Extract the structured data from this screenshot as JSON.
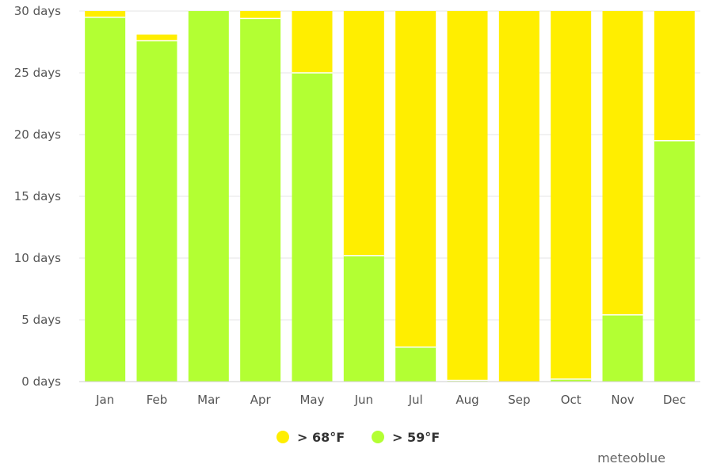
{
  "chart_data": {
    "type": "bar",
    "stacked": true,
    "categories": [
      "Jan",
      "Feb",
      "Mar",
      "Apr",
      "May",
      "Jun",
      "Jul",
      "Aug",
      "Sep",
      "Oct",
      "Nov",
      "Dec"
    ],
    "series": [
      {
        "name": "> 59°F",
        "color": "#b3ff33",
        "values": [
          29.5,
          27.6,
          30.0,
          29.4,
          25.0,
          10.2,
          2.8,
          0.1,
          0.0,
          0.2,
          5.4,
          19.5
        ]
      },
      {
        "name": "> 68°F",
        "color": "#ffee00",
        "values": [
          0.5,
          0.5,
          0.0,
          0.6,
          5.0,
          19.8,
          27.2,
          29.9,
          30.0,
          29.8,
          24.6,
          10.5
        ]
      }
    ],
    "ylim": [
      0,
      30
    ],
    "yticks": [
      0,
      5,
      10,
      15,
      20,
      25,
      30
    ],
    "ytick_suffix": " days",
    "grid": true,
    "legend_position": "bottom-center",
    "legend_order": [
      "> 68°F",
      "> 59°F"
    ]
  },
  "credit": "meteoblue"
}
